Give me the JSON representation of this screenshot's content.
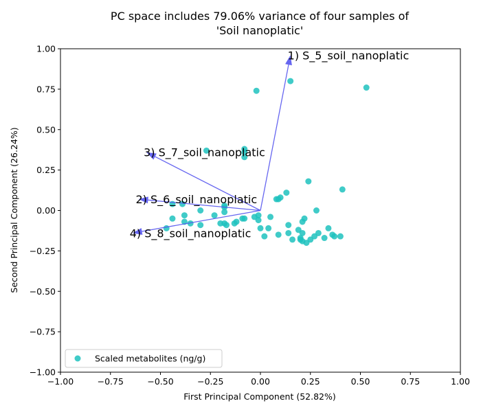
{
  "chart_data": {
    "type": "scatter",
    "title_lines": [
      "PC space includes 79.06% variance of four samples of",
      "'Soil nanoplatic'"
    ],
    "xlabel": "First Principal Component (52.82%)",
    "ylabel": "Second Principal Component (26.24%)",
    "xlim": [
      -1.0,
      1.0
    ],
    "ylim": [
      -1.0,
      1.0
    ],
    "xticks": [
      -1.0,
      -0.75,
      -0.5,
      -0.25,
      0.0,
      0.25,
      0.5,
      0.75,
      1.0
    ],
    "yticks": [
      -1.0,
      -0.75,
      -0.5,
      -0.25,
      0.0,
      0.25,
      0.5,
      0.75,
      1.0
    ],
    "xtick_labels": [
      "−1.00",
      "−0.75",
      "−0.50",
      "−0.25",
      "0.00",
      "0.25",
      "0.50",
      "0.75",
      "1.00"
    ],
    "ytick_labels": [
      "−1.00",
      "−0.75",
      "−0.50",
      "−0.25",
      "0.00",
      "0.25",
      "0.50",
      "0.75",
      "1.00"
    ],
    "grid": false,
    "legend": {
      "position": "bottom-left",
      "label": "Scaled metabolites (ng/g)"
    },
    "point_color": "#1fc2be",
    "vector_color": "#5555ee",
    "series": [
      {
        "name": "Scaled metabolites (ng/g)",
        "points": [
          [
            0.15,
            0.8
          ],
          [
            0.53,
            0.76
          ],
          [
            -0.02,
            0.74
          ],
          [
            -0.27,
            0.37
          ],
          [
            -0.08,
            0.38
          ],
          [
            -0.08,
            0.36
          ],
          [
            -0.08,
            0.33
          ],
          [
            0.24,
            0.18
          ],
          [
            0.41,
            0.13
          ],
          [
            0.13,
            0.11
          ],
          [
            0.1,
            0.08
          ],
          [
            0.08,
            0.07
          ],
          [
            0.09,
            0.07
          ],
          [
            -0.39,
            0.04
          ],
          [
            -0.44,
            0.04
          ],
          [
            -0.18,
            0.03
          ],
          [
            -0.18,
            0.02
          ],
          [
            -0.3,
            0.0
          ],
          [
            -0.18,
            -0.01
          ],
          [
            0.28,
            0.0
          ],
          [
            -0.23,
            -0.03
          ],
          [
            -0.38,
            -0.03
          ],
          [
            0.05,
            -0.04
          ],
          [
            -0.01,
            -0.03
          ],
          [
            -0.03,
            -0.04
          ],
          [
            -0.44,
            -0.05
          ],
          [
            -0.09,
            -0.05
          ],
          [
            -0.08,
            -0.05
          ],
          [
            -0.01,
            -0.06
          ],
          [
            0.22,
            -0.05
          ],
          [
            -0.38,
            -0.07
          ],
          [
            -0.35,
            -0.08
          ],
          [
            -0.12,
            -0.07
          ],
          [
            -0.13,
            -0.08
          ],
          [
            -0.18,
            -0.08
          ],
          [
            -0.2,
            -0.08
          ],
          [
            -0.17,
            -0.09
          ],
          [
            -0.3,
            -0.09
          ],
          [
            0.21,
            -0.07
          ],
          [
            0.14,
            -0.09
          ],
          [
            -0.47,
            -0.11
          ],
          [
            0.0,
            -0.11
          ],
          [
            0.04,
            -0.11
          ],
          [
            0.19,
            -0.12
          ],
          [
            0.34,
            -0.11
          ],
          [
            0.14,
            -0.14
          ],
          [
            0.09,
            -0.15
          ],
          [
            0.21,
            -0.14
          ],
          [
            0.29,
            -0.14
          ],
          [
            0.36,
            -0.15
          ],
          [
            0.37,
            -0.16
          ],
          [
            0.4,
            -0.16
          ],
          [
            0.02,
            -0.16
          ],
          [
            0.32,
            -0.17
          ],
          [
            0.27,
            -0.16
          ],
          [
            0.16,
            -0.18
          ],
          [
            0.2,
            -0.17
          ],
          [
            0.2,
            -0.18
          ],
          [
            0.25,
            -0.18
          ],
          [
            0.21,
            -0.19
          ],
          [
            0.23,
            -0.2
          ]
        ]
      }
    ],
    "vectors": [
      {
        "label": "1) S_5_soil_nanoplatic",
        "x": 0.15,
        "y": 0.96
      },
      {
        "label": "3) S_7_soil_nanoplatic",
        "x": -0.57,
        "y": 0.36
      },
      {
        "label": "2) S_6_soil_nanoplatic",
        "x": -0.61,
        "y": 0.07
      },
      {
        "label": "4) S_8_soil_nanoplatic",
        "x": -0.64,
        "y": -0.14
      }
    ]
  }
}
